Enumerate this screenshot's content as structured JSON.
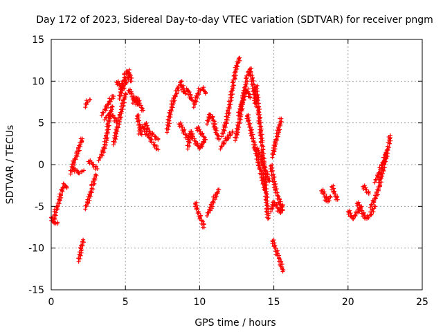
{
  "chart_data": {
    "type": "scatter",
    "title": "Day 172 of 2023, Sidereal Day-to-day VTEC variation (SDTVAR) for receiver pngm",
    "xlabel": "GPS time / hours",
    "ylabel": "SDTVAR / TECUs",
    "xlim": [
      0,
      25
    ],
    "ylim": [
      -15,
      15
    ],
    "xticks": [
      0,
      5,
      10,
      15,
      20,
      25
    ],
    "yticks": [
      -15,
      -10,
      -5,
      0,
      5,
      10,
      15
    ],
    "grid": true,
    "marker": "+",
    "color": "#ff0000",
    "series_segments": [
      {
        "x": [
          0.0,
          0.15,
          0.3,
          0.45
        ],
        "y": [
          -6.2,
          -7.0,
          -5.5,
          -4.9
        ]
      },
      {
        "x": [
          0.3,
          0.4
        ],
        "y": [
          -6.9,
          -7.1
        ]
      },
      {
        "x": [
          0.45,
          0.7,
          0.9,
          1.05
        ],
        "y": [
          -4.9,
          -3.2,
          -2.4,
          -2.8
        ]
      },
      {
        "x": [
          1.3,
          1.5,
          1.8,
          2.0,
          2.1
        ],
        "y": [
          -1.0,
          0.2,
          1.5,
          2.8,
          3.1
        ]
      },
      {
        "x": [
          1.5,
          1.8,
          2.2
        ],
        "y": [
          -0.5,
          -1.0,
          -0.7
        ]
      },
      {
        "x": [
          1.85,
          2.0,
          2.15
        ],
        "y": [
          -11.5,
          -10.2,
          -9.0
        ]
      },
      {
        "x": [
          2.3,
          2.4,
          2.6
        ],
        "y": [
          7.0,
          7.5,
          7.8
        ]
      },
      {
        "x": [
          2.3,
          2.6,
          2.8,
          3.0
        ],
        "y": [
          -5.2,
          -3.8,
          -2.5,
          -1.2
        ]
      },
      {
        "x": [
          2.5,
          2.8,
          3.1
        ],
        "y": [
          0.5,
          0.0,
          -0.5
        ]
      },
      {
        "x": [
          3.2,
          3.5,
          3.7,
          3.9,
          4.1
        ],
        "y": [
          0.6,
          1.5,
          3.0,
          5.5,
          7.0
        ]
      },
      {
        "x": [
          3.4,
          3.7,
          4.0,
          4.2
        ],
        "y": [
          6.0,
          6.8,
          7.8,
          8.2
        ]
      },
      {
        "x": [
          3.6,
          3.9,
          4.2,
          4.4
        ],
        "y": [
          5.5,
          6.0,
          5.8,
          5.0
        ]
      },
      {
        "x": [
          4.2,
          4.4,
          4.6,
          4.8,
          5.0
        ],
        "y": [
          2.5,
          4.0,
          5.5,
          7.0,
          8.5
        ]
      },
      {
        "x": [
          4.4,
          4.6,
          4.8,
          5.0,
          5.2
        ],
        "y": [
          10.0,
          9.5,
          9.0,
          9.8,
          10.5
        ]
      },
      {
        "x": [
          4.6,
          4.8,
          5.0,
          5.2,
          5.4
        ],
        "y": [
          8.0,
          9.5,
          10.8,
          11.3,
          10.0
        ]
      },
      {
        "x": [
          5.2,
          5.4,
          5.6,
          5.8
        ],
        "y": [
          9.0,
          8.5,
          7.8,
          7.2
        ]
      },
      {
        "x": [
          5.5,
          5.8,
          6.0,
          6.2
        ],
        "y": [
          7.5,
          8.0,
          7.0,
          6.5
        ]
      },
      {
        "x": [
          5.8,
          6.0,
          6.2,
          6.5,
          6.8,
          7.0,
          7.2
        ],
        "y": [
          6.0,
          4.0,
          4.5,
          3.5,
          2.8,
          2.2,
          1.8
        ]
      },
      {
        "x": [
          6.3,
          6.6,
          6.9,
          7.2
        ],
        "y": [
          5.0,
          4.0,
          3.5,
          3.0
        ]
      },
      {
        "x": [
          5.9,
          6.1
        ],
        "y": [
          3.8,
          3.6
        ]
      },
      {
        "x": [
          7.8,
          8.0,
          8.2,
          8.4,
          8.6,
          8.8
        ],
        "y": [
          4.0,
          6.0,
          7.5,
          8.5,
          9.3,
          10.0
        ]
      },
      {
        "x": [
          8.8,
          9.0,
          9.2,
          9.4,
          9.6
        ],
        "y": [
          9.5,
          8.5,
          9.0,
          8.0,
          7.5
        ]
      },
      {
        "x": [
          8.6,
          8.8,
          9.0,
          9.2
        ],
        "y": [
          5.0,
          4.5,
          3.8,
          3.0
        ]
      },
      {
        "x": [
          9.2,
          9.4,
          9.6,
          9.8,
          10.0,
          10.2,
          10.4
        ],
        "y": [
          2.0,
          4.0,
          3.0,
          2.5,
          2.0,
          2.5,
          3.0
        ]
      },
      {
        "x": [
          9.6,
          9.8,
          10.0,
          10.2,
          10.4
        ],
        "y": [
          7.0,
          8.0,
          9.0,
          9.2,
          8.5
        ]
      },
      {
        "x": [
          9.8,
          10.0,
          10.2,
          10.4
        ],
        "y": [
          4.5,
          4.0,
          3.5,
          3.0
        ]
      },
      {
        "x": [
          9.7,
          9.9,
          10.1,
          10.3
        ],
        "y": [
          -4.5,
          -5.8,
          -6.5,
          -7.5
        ]
      },
      {
        "x": [
          10.5,
          10.7,
          10.9,
          11.1,
          11.3
        ],
        "y": [
          5.0,
          6.0,
          5.5,
          4.0,
          3.0
        ]
      },
      {
        "x": [
          10.5,
          10.8,
          11.0,
          11.3
        ],
        "y": [
          -6.0,
          -5.0,
          -4.0,
          -3.0
        ]
      },
      {
        "x": [
          11.5,
          11.7,
          11.9,
          12.1,
          12.3,
          12.5,
          12.7
        ],
        "y": [
          3.5,
          4.5,
          6.0,
          8.0,
          10.0,
          12.0,
          12.8
        ]
      },
      {
        "x": [
          11.4,
          11.6,
          11.8,
          12.0,
          12.2
        ],
        "y": [
          2.0,
          2.5,
          3.0,
          3.5,
          4.0
        ]
      },
      {
        "x": [
          12.4,
          12.6,
          12.8,
          13.0,
          13.2,
          13.4,
          13.6,
          13.8
        ],
        "y": [
          3.0,
          4.5,
          6.5,
          8.5,
          10.5,
          11.5,
          9.5,
          7.0
        ]
      },
      {
        "x": [
          12.6,
          12.8,
          13.0,
          13.2,
          13.4
        ],
        "y": [
          6.0,
          7.0,
          8.5,
          9.0,
          8.0
        ]
      },
      {
        "x": [
          13.2,
          13.4,
          13.6,
          13.8,
          14.0,
          14.2,
          14.4
        ],
        "y": [
          6.0,
          4.5,
          3.0,
          1.5,
          0.0,
          -1.5,
          -3.0
        ]
      },
      {
        "x": [
          13.8,
          14.0,
          14.2,
          14.4,
          14.6
        ],
        "y": [
          9.5,
          6.0,
          2.5,
          -1.5,
          -6.5
        ]
      },
      {
        "x": [
          13.8,
          14.1,
          14.4,
          14.7
        ],
        "y": [
          2.0,
          1.0,
          -0.5,
          -2.0
        ]
      },
      {
        "x": [
          14.9,
          15.1,
          15.3,
          15.5,
          15.6
        ],
        "y": [
          -9.0,
          -10.0,
          -11.0,
          -12.0,
          -12.8
        ]
      },
      {
        "x": [
          14.8,
          15.0,
          15.2,
          15.4,
          15.6
        ],
        "y": [
          0.0,
          -2.0,
          -3.5,
          -4.5,
          -5.5
        ]
      },
      {
        "x": [
          14.8,
          15.0,
          15.2,
          15.4,
          15.6
        ],
        "y": [
          -5.5,
          -4.5,
          -5.0,
          -5.8,
          -4.8
        ]
      },
      {
        "x": [
          14.9,
          15.1,
          15.3,
          15.5
        ],
        "y": [
          1.0,
          2.5,
          4.0,
          5.5
        ]
      },
      {
        "x": [
          18.2,
          18.4,
          18.6,
          18.8
        ],
        "y": [
          -3.0,
          -3.5,
          -4.5,
          -3.8
        ]
      },
      {
        "x": [
          18.9,
          19.1,
          19.3
        ],
        "y": [
          -2.5,
          -3.5,
          -4.2
        ]
      },
      {
        "x": [
          20.0,
          20.3,
          20.6,
          20.9
        ],
        "y": [
          -5.5,
          -6.5,
          -5.8,
          -5.0
        ]
      },
      {
        "x": [
          20.6,
          20.9,
          21.2,
          21.5,
          21.8
        ],
        "y": [
          -4.5,
          -5.5,
          -6.5,
          -6.0,
          -5.0
        ]
      },
      {
        "x": [
          21.0,
          21.2,
          21.4
        ],
        "y": [
          -2.5,
          -3.0,
          -3.5
        ]
      },
      {
        "x": [
          21.5,
          21.7,
          21.9,
          22.1,
          22.3,
          22.5,
          22.7,
          22.85
        ],
        "y": [
          -5.0,
          -4.5,
          -3.8,
          -2.5,
          -1.0,
          0.5,
          2.0,
          3.5
        ]
      },
      {
        "x": [
          21.8,
          22.0,
          22.2,
          22.4,
          22.6
        ],
        "y": [
          -2.0,
          -1.5,
          -0.5,
          0.5,
          1.5
        ]
      }
    ]
  }
}
